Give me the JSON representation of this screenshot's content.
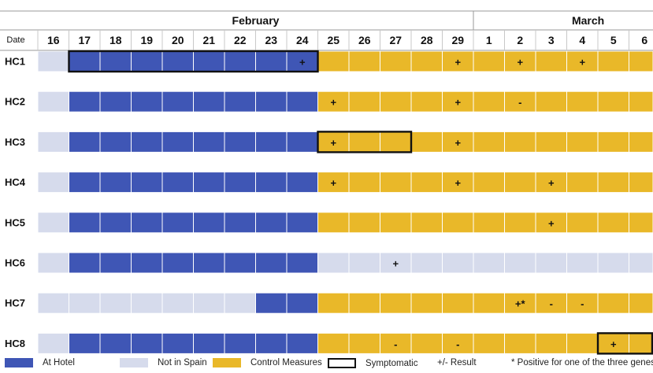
{
  "chart_data": {
    "type": "table",
    "months": [
      {
        "name": "February",
        "days": [
          "16",
          "17",
          "18",
          "19",
          "20",
          "21",
          "22",
          "23",
          "24",
          "25",
          "26",
          "27",
          "28",
          "29"
        ]
      },
      {
        "name": "March",
        "days": [
          "1",
          "2",
          "3",
          "4",
          "5",
          "6"
        ]
      }
    ],
    "row_header": "Date",
    "status_colors": {
      "H": "#3F56B5",
      "N": "#D6DBEC",
      "C": "#E9B829"
    },
    "rows": [
      {
        "label": "HC1",
        "status": [
          "N",
          "H",
          "H",
          "H",
          "H",
          "H",
          "H",
          "H",
          "H",
          "C",
          "C",
          "C",
          "C",
          "C",
          "C",
          "C",
          "C",
          "C",
          "C",
          "C"
        ],
        "marks": [
          "",
          "",
          "",
          "",
          "",
          "",
          "",
          "",
          "+",
          "",
          "",
          "",
          "",
          "+",
          "",
          "+",
          "",
          "+",
          "",
          ""
        ],
        "symptomatic": [
          [
            1,
            8
          ]
        ]
      },
      {
        "label": "HC2",
        "status": [
          "N",
          "H",
          "H",
          "H",
          "H",
          "H",
          "H",
          "H",
          "H",
          "C",
          "C",
          "C",
          "C",
          "C",
          "C",
          "C",
          "C",
          "C",
          "C",
          "C"
        ],
        "marks": [
          "",
          "",
          "",
          "",
          "",
          "",
          "",
          "",
          "",
          "+",
          "",
          "",
          "",
          "+",
          "",
          "-",
          "",
          "",
          "",
          ""
        ],
        "symptomatic": []
      },
      {
        "label": "HC3",
        "status": [
          "N",
          "H",
          "H",
          "H",
          "H",
          "H",
          "H",
          "H",
          "H",
          "C",
          "C",
          "C",
          "C",
          "C",
          "C",
          "C",
          "C",
          "C",
          "C",
          "C"
        ],
        "marks": [
          "",
          "",
          "",
          "",
          "",
          "",
          "",
          "",
          "",
          "+",
          "",
          "",
          "",
          "+",
          "",
          "",
          "",
          "",
          "",
          ""
        ],
        "symptomatic": [
          [
            9,
            11
          ]
        ]
      },
      {
        "label": "HC4",
        "status": [
          "N",
          "H",
          "H",
          "H",
          "H",
          "H",
          "H",
          "H",
          "H",
          "C",
          "C",
          "C",
          "C",
          "C",
          "C",
          "C",
          "C",
          "C",
          "C",
          "C"
        ],
        "marks": [
          "",
          "",
          "",
          "",
          "",
          "",
          "",
          "",
          "",
          "+",
          "",
          "",
          "",
          "+",
          "",
          "",
          "+",
          "",
          "",
          ""
        ],
        "symptomatic": []
      },
      {
        "label": "HC5",
        "status": [
          "N",
          "H",
          "H",
          "H",
          "H",
          "H",
          "H",
          "H",
          "H",
          "C",
          "C",
          "C",
          "C",
          "C",
          "C",
          "C",
          "C",
          "C",
          "C",
          "C"
        ],
        "marks": [
          "",
          "",
          "",
          "",
          "",
          "",
          "",
          "",
          "",
          "",
          "",
          "",
          "",
          "",
          "",
          "",
          "+",
          "",
          "",
          ""
        ],
        "symptomatic": []
      },
      {
        "label": "HC6",
        "status": [
          "N",
          "H",
          "H",
          "H",
          "H",
          "H",
          "H",
          "H",
          "H",
          "N",
          "N",
          "N",
          "N",
          "N",
          "N",
          "N",
          "N",
          "N",
          "N",
          "N"
        ],
        "marks": [
          "",
          "",
          "",
          "",
          "",
          "",
          "",
          "",
          "",
          "",
          "",
          "+",
          "",
          "",
          "",
          "",
          "",
          "",
          "",
          ""
        ],
        "symptomatic": []
      },
      {
        "label": "HC7",
        "status": [
          "N",
          "N",
          "N",
          "N",
          "N",
          "N",
          "N",
          "H",
          "H",
          "C",
          "C",
          "C",
          "C",
          "C",
          "C",
          "C",
          "C",
          "C",
          "C",
          "C"
        ],
        "marks": [
          "",
          "",
          "",
          "",
          "",
          "",
          "",
          "",
          "",
          "",
          "",
          "",
          "",
          "",
          "",
          "+*",
          "-",
          "-",
          "",
          ""
        ],
        "symptomatic": []
      },
      {
        "label": "HC8",
        "status": [
          "N",
          "H",
          "H",
          "H",
          "H",
          "H",
          "H",
          "H",
          "H",
          "C",
          "C",
          "C",
          "C",
          "C",
          "C",
          "C",
          "C",
          "C",
          "C",
          "C"
        ],
        "marks": [
          "",
          "",
          "",
          "",
          "",
          "",
          "",
          "",
          "",
          "",
          "",
          "-",
          "",
          "-",
          "",
          "",
          "",
          "",
          "+",
          ""
        ],
        "symptomatic": [
          [
            18,
            19
          ]
        ]
      }
    ],
    "legend": [
      {
        "kind": "swatch",
        "status": "H",
        "label": "At Hotel"
      },
      {
        "kind": "swatch",
        "status": "N",
        "label": "Not in Spain"
      },
      {
        "kind": "swatch",
        "status": "C",
        "label": "Control Measures"
      },
      {
        "kind": "outline",
        "label": "Symptomatic"
      },
      {
        "kind": "text",
        "label": "+/-  Result"
      },
      {
        "kind": "text",
        "label": "* Positive for one of the three genes"
      }
    ]
  }
}
